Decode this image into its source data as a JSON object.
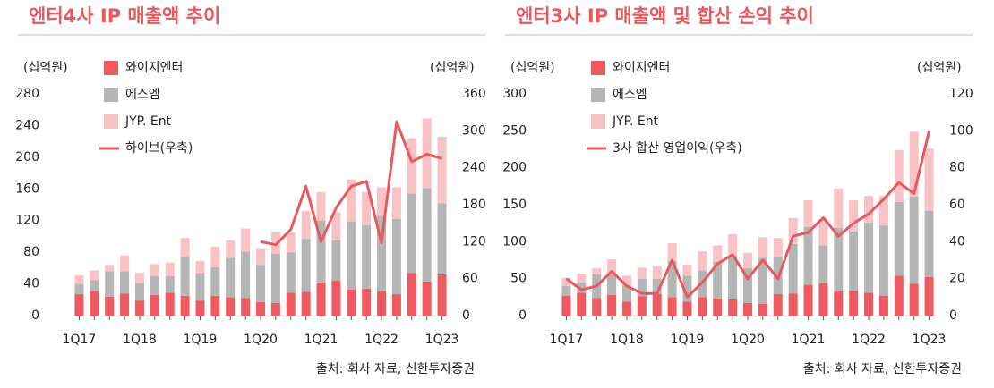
{
  "chart_data": [
    {
      "type": "bar",
      "stacked": true,
      "title": "엔터4사 IP 매출액 추이",
      "y_label": "(십억원)",
      "y2_label": "(십억원)",
      "categories": [
        "1Q17",
        null,
        null,
        null,
        "1Q18",
        null,
        null,
        null,
        "1Q19",
        null,
        null,
        null,
        "1Q20",
        null,
        null,
        null,
        "1Q21",
        null,
        null,
        null,
        "1Q22",
        null,
        null,
        null,
        "1Q23"
      ],
      "series": [
        {
          "name": "와이지엔터",
          "color": "#ee5a5f",
          "values": [
            27,
            31,
            24,
            28,
            19,
            26,
            29,
            25,
            19,
            25,
            23,
            22,
            17,
            16,
            29,
            30,
            42,
            44,
            33,
            34,
            31,
            27,
            54,
            43,
            52
          ]
        },
        {
          "name": "에스엠",
          "color": "#b5b5b5",
          "values": [
            13,
            14,
            32,
            28,
            22,
            24,
            21,
            49,
            35,
            36,
            50,
            59,
            47,
            62,
            51,
            67,
            78,
            51,
            86,
            80,
            95,
            95,
            100,
            118,
            90
          ]
        },
        {
          "name": "JYP. Ent",
          "color": "#f9c2c5",
          "values": [
            11,
            12,
            8,
            20,
            13,
            15,
            17,
            24,
            15,
            26,
            22,
            29,
            21,
            28,
            25,
            35,
            36,
            35,
            53,
            42,
            36,
            40,
            70,
            88,
            84
          ]
        },
        {
          "name": "하이브(우축)",
          "color": "#e8595e",
          "type": "line",
          "axis": "y2",
          "values": [
            null,
            null,
            null,
            null,
            null,
            null,
            null,
            null,
            null,
            null,
            null,
            null,
            120,
            115,
            140,
            210,
            120,
            175,
            210,
            218,
            118,
            315,
            250,
            262,
            255
          ]
        }
      ],
      "ylim": [
        0,
        280
      ],
      "yticks": [
        0,
        40,
        80,
        120,
        160,
        200,
        240,
        280
      ],
      "y2lim": [
        0,
        360
      ],
      "y2ticks": [
        0,
        60,
        120,
        180,
        240,
        300,
        360
      ],
      "source": "출처: 회사 자료, 신한투자증권"
    },
    {
      "type": "bar",
      "stacked": true,
      "title": "엔터3사 IP 매출액 및 합산 손익 추이",
      "y_label": "(십억원)",
      "y2_label": "(십억원)",
      "categories": [
        "1Q17",
        null,
        null,
        null,
        "1Q18",
        null,
        null,
        null,
        "1Q19",
        null,
        null,
        null,
        "1Q20",
        null,
        null,
        null,
        "1Q21",
        null,
        null,
        null,
        "1Q22",
        null,
        null,
        null,
        "1Q23"
      ],
      "series": [
        {
          "name": "와이지엔터",
          "color": "#ee5a5f",
          "values": [
            27,
            31,
            24,
            28,
            19,
            26,
            29,
            25,
            19,
            25,
            23,
            22,
            17,
            16,
            29,
            30,
            42,
            44,
            33,
            34,
            31,
            27,
            54,
            43,
            52
          ]
        },
        {
          "name": "에스엠",
          "color": "#b5b5b5",
          "values": [
            13,
            14,
            32,
            28,
            22,
            24,
            21,
            49,
            35,
            36,
            50,
            59,
            47,
            62,
            51,
            67,
            78,
            51,
            86,
            80,
            95,
            95,
            100,
            118,
            90
          ]
        },
        {
          "name": "JYP. Ent",
          "color": "#f9c2c5",
          "values": [
            11,
            12,
            8,
            20,
            13,
            15,
            17,
            24,
            15,
            26,
            22,
            29,
            21,
            28,
            25,
            35,
            36,
            35,
            53,
            42,
            36,
            40,
            70,
            88,
            84
          ]
        },
        {
          "name": "3사 합산 영업이익(우축)",
          "color": "#e8595e",
          "type": "line",
          "axis": "y2",
          "values": [
            20,
            14,
            16,
            24,
            16,
            12,
            12,
            30,
            10,
            18,
            28,
            33,
            20,
            30,
            20,
            43,
            45,
            53,
            43,
            50,
            55,
            63,
            72,
            66,
            100
          ]
        }
      ],
      "ylim": [
        0,
        300
      ],
      "yticks": [
        0,
        50,
        100,
        150,
        200,
        250,
        300
      ],
      "y2lim": [
        0,
        120
      ],
      "y2ticks": [
        0,
        20,
        40,
        60,
        80,
        100,
        120
      ],
      "source": "출처: 회사 자료, 신한투자증권"
    }
  ]
}
